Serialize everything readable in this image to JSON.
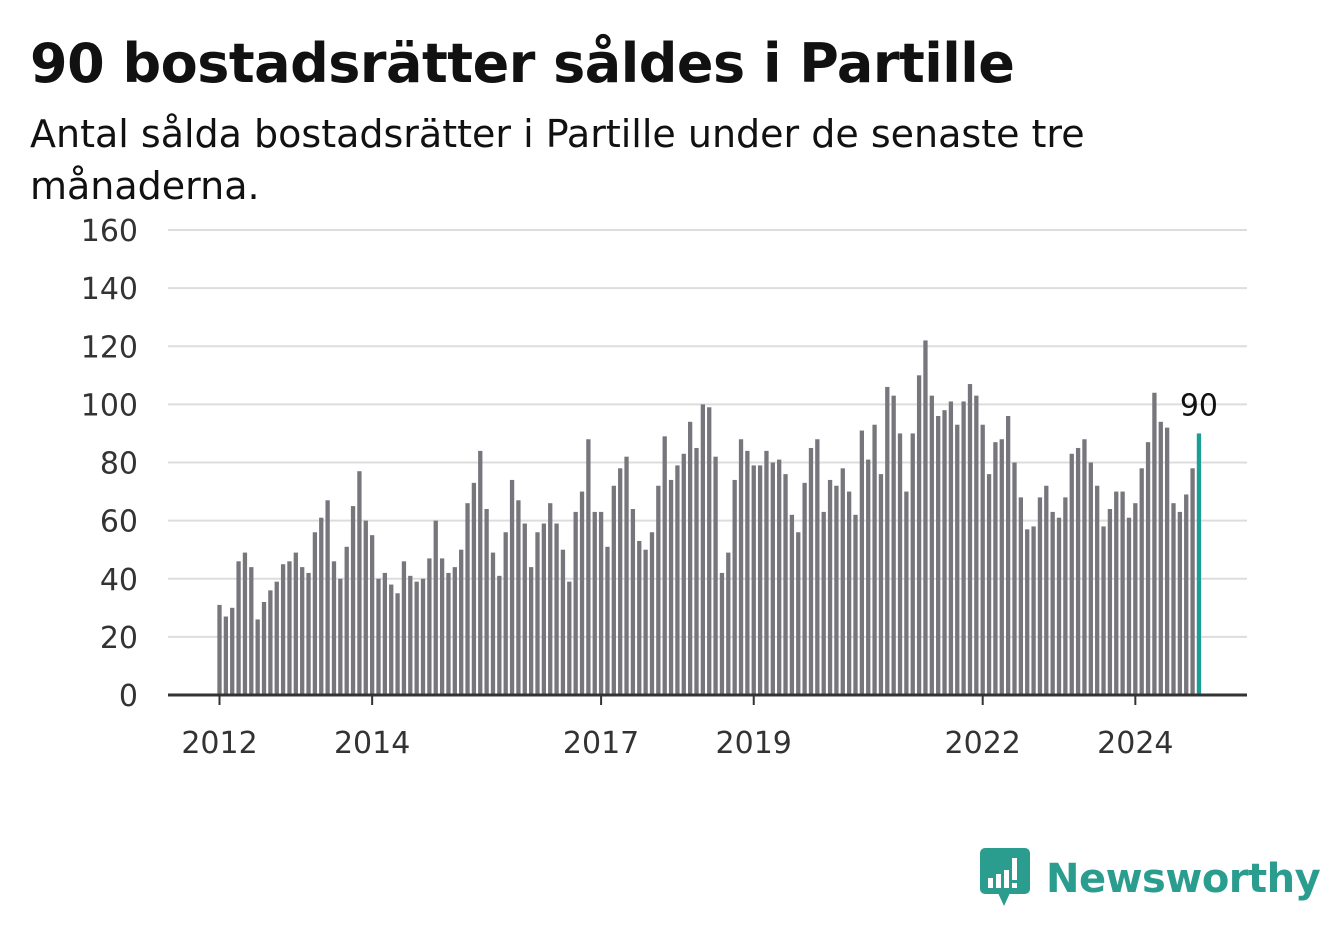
{
  "title": "90 bostadsrätter såldes i Partille",
  "subtitle": "Antal sålda bostadsrätter i Partille under de senaste tre månaderna.",
  "brand": {
    "name": "Newsworthy",
    "icon": "newsworthy-logo-icon",
    "color": "#2a9d8f"
  },
  "colors": {
    "bar": "#77767c",
    "highlight": "#1a9e96",
    "grid": "#dddddd",
    "axis": "#333333"
  },
  "chart_data": {
    "type": "bar",
    "title": "90 bostadsrätter såldes i Partille",
    "subtitle": "Antal sålda bostadsrätter i Partille under de senaste tre månaderna.",
    "xlabel": "",
    "ylabel": "",
    "ylim": [
      0,
      160
    ],
    "yticks": [
      0,
      20,
      40,
      60,
      80,
      100,
      120,
      140,
      160
    ],
    "x_start": "2012-01",
    "xticks": [
      {
        "label": "2012",
        "month": "2012-01"
      },
      {
        "label": "2014",
        "month": "2014-01"
      },
      {
        "label": "2017",
        "month": "2017-01"
      },
      {
        "label": "2019",
        "month": "2019-01"
      },
      {
        "label": "2022",
        "month": "2022-01"
      },
      {
        "label": "2024",
        "month": "2024-01"
      }
    ],
    "grid": true,
    "values": [
      31,
      27,
      30,
      46,
      49,
      44,
      26,
      32,
      36,
      39,
      45,
      46,
      49,
      44,
      42,
      56,
      61,
      67,
      46,
      40,
      51,
      65,
      77,
      60,
      55,
      40,
      42,
      38,
      35,
      46,
      41,
      39,
      40,
      47,
      60,
      47,
      42,
      44,
      50,
      66,
      73,
      84,
      64,
      49,
      41,
      56,
      74,
      67,
      59,
      44,
      56,
      59,
      66,
      59,
      50,
      39,
      63,
      70,
      88,
      63,
      63,
      51,
      72,
      78,
      82,
      64,
      53,
      50,
      56,
      72,
      89,
      74,
      79,
      83,
      94,
      85,
      100,
      99,
      82,
      42,
      49,
      74,
      88,
      84,
      79,
      79,
      84,
      80,
      81,
      76,
      62,
      56,
      73,
      85,
      88,
      63,
      74,
      72,
      78,
      70,
      62,
      91,
      81,
      93,
      76,
      106,
      103,
      90,
      70,
      90,
      110,
      122,
      103,
      96,
      98,
      101,
      93,
      101,
      107,
      103,
      93,
      76,
      87,
      88,
      96,
      80,
      68,
      57,
      58,
      68,
      72,
      63,
      61,
      68,
      83,
      85,
      88,
      80,
      72,
      58,
      64,
      70,
      70,
      61,
      66,
      78,
      87,
      104,
      94,
      92,
      66,
      63,
      69,
      78,
      90
    ],
    "highlight_last": true,
    "annotation": {
      "label": "90",
      "value": 90
    }
  }
}
